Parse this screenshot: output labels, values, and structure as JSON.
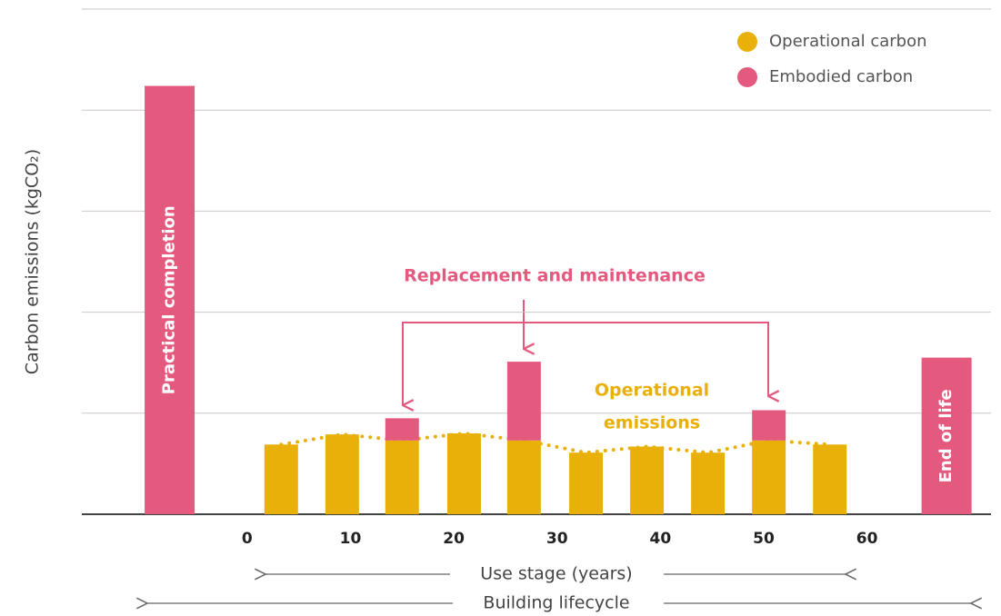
{
  "chart_data": {
    "type": "stacked_bar",
    "ylabel": "Carbon emissions (kgCO₂)",
    "x": [
      -7.5,
      3.3,
      9.2,
      15,
      21,
      26.8,
      32.8,
      38.7,
      44.6,
      50.5,
      56.4,
      67.7
    ],
    "xlim": [
      -16,
      72
    ],
    "xticks": [
      0,
      10,
      20,
      30,
      40,
      50,
      60
    ],
    "ylim": [
      0,
      5
    ],
    "yticks": [
      0,
      1,
      2,
      3,
      4,
      5
    ],
    "grid": true,
    "series": [
      {
        "name": "Operational carbon",
        "color": "#EAB00A",
        "values": [
          null,
          0.69,
          0.79,
          0.73,
          0.8,
          0.73,
          0.61,
          0.67,
          0.61,
          0.73,
          0.69,
          null
        ]
      },
      {
        "name": "Embodied carbon",
        "color": "#E45A7F",
        "values": [
          4.24,
          null,
          null,
          0.22,
          null,
          0.78,
          null,
          null,
          null,
          0.3,
          null,
          1.55
        ]
      }
    ],
    "bar_labels": [
      "Practical completion",
      null,
      null,
      null,
      null,
      null,
      null,
      null,
      null,
      null,
      null,
      "End of life"
    ],
    "annotation": "Replacement and maintenance",
    "curve_label": [
      "Operational",
      "emissions"
    ],
    "x_span_labels": [
      "Use stage (years)",
      "Building lifecycle"
    ],
    "legend": "top-right"
  }
}
